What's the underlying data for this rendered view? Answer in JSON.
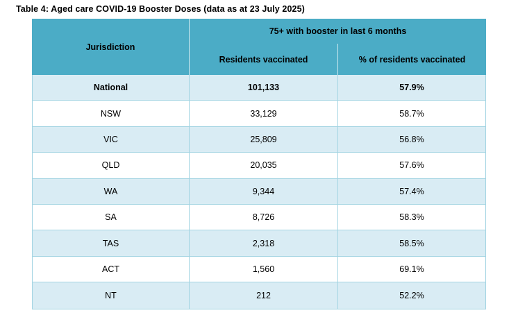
{
  "title": "Table 4: Aged care COVID-19 Booster Doses (data as at 23 July 2025)",
  "table": {
    "header": {
      "jurisdiction_label": "Jurisdiction",
      "group_label": "75+ with booster in last 6 months",
      "residents_label": "Residents vaccinated",
      "pct_label": "% of residents vaccinated"
    },
    "rows": [
      {
        "jurisdiction": "National",
        "residents_vaccinated": "101,133",
        "pct_vaccinated": "57.9%"
      },
      {
        "jurisdiction": "NSW",
        "residents_vaccinated": "33,129",
        "pct_vaccinated": "58.7%"
      },
      {
        "jurisdiction": "VIC",
        "residents_vaccinated": "25,809",
        "pct_vaccinated": "56.8%"
      },
      {
        "jurisdiction": "QLD",
        "residents_vaccinated": "20,035",
        "pct_vaccinated": "57.6%"
      },
      {
        "jurisdiction": "WA",
        "residents_vaccinated": "9,344",
        "pct_vaccinated": "57.4%"
      },
      {
        "jurisdiction": "SA",
        "residents_vaccinated": "8,726",
        "pct_vaccinated": "58.3%"
      },
      {
        "jurisdiction": "TAS",
        "residents_vaccinated": "2,318",
        "pct_vaccinated": "58.5%"
      },
      {
        "jurisdiction": "ACT",
        "residents_vaccinated": "1,560",
        "pct_vaccinated": "69.1%"
      },
      {
        "jurisdiction": "NT",
        "residents_vaccinated": "212",
        "pct_vaccinated": "52.2%"
      }
    ]
  },
  "colors": {
    "header_bg": "#4BACC6",
    "header_divider": "#CDE9F0",
    "row_alt_bg": "#D9ECF4",
    "row_bg": "#FFFFFF",
    "border": "#A3D4E2"
  }
}
